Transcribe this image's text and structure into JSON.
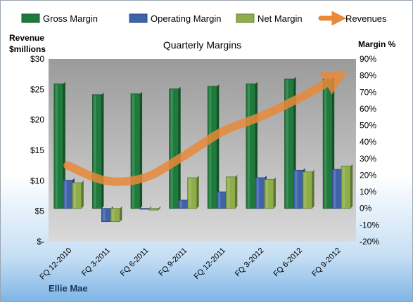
{
  "chart_data": {
    "type": "bar",
    "title": "Quarterly Margins",
    "y_left_label": [
      "Revenue",
      "$millions"
    ],
    "y_right_label": "Margin %",
    "y_left_ticks": [
      "$-",
      "$5",
      "$10",
      "$15",
      "$20",
      "$25",
      "$30"
    ],
    "y_left_range": [
      0,
      30
    ],
    "y_right_ticks": [
      "-20%",
      "-10%",
      "0%",
      "10%",
      "20%",
      "30%",
      "40%",
      "50%",
      "60%",
      "70%",
      "80%",
      "90%"
    ],
    "y_right_range": [
      -20,
      90
    ],
    "categories": [
      "FQ 12-2010",
      "FQ 3-2011",
      "FQ 6-2011",
      "FQ 9-2011",
      "FQ 12-2011",
      "FQ 3-2012",
      "FQ 6-2012",
      "FQ 9-2012"
    ],
    "series": [
      {
        "name": "Gross Margin",
        "axis": "right",
        "color": "#1f7a3c",
        "values": [
          75,
          68.5,
          69,
          72,
          73.5,
          75,
          78,
          78
        ]
      },
      {
        "name": "Operating Margin",
        "axis": "right",
        "color": "#3f63a8",
        "values": [
          17,
          -8,
          -0.5,
          5,
          10,
          18.5,
          23,
          23.5
        ]
      },
      {
        "name": "Net Margin",
        "axis": "right",
        "color": "#8fae4a",
        "values": [
          15.5,
          -8,
          -1,
          18.5,
          19,
          17.5,
          22,
          25.5
        ]
      },
      {
        "name": "Revenues",
        "axis": "left",
        "type": "line",
        "color": "#e9893a",
        "values": [
          12.5,
          10,
          10.5,
          14,
          18,
          20.5,
          23.5,
          27
        ]
      }
    ],
    "legend_position": "top",
    "grid": false
  },
  "footer": {
    "brand": "Ellie Mae"
  }
}
